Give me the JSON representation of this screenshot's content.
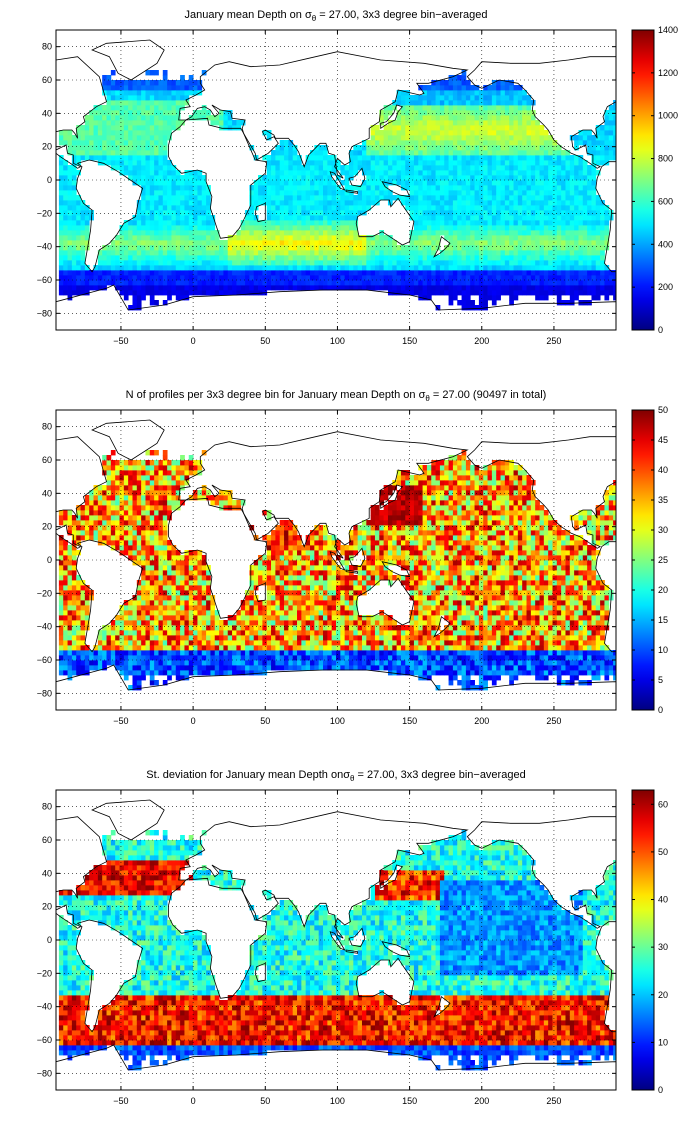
{
  "chart_data": [
    {
      "type": "heatmap",
      "title": "January mean Depth on σθ = 27.00, 3x3 degree bin−averaged",
      "title_parts": {
        "pre": "January mean Depth on σ",
        "sub": "θ",
        "post": " = 27.00, 3x3 degree bin−averaged"
      },
      "xlim": [
        -95,
        293
      ],
      "ylim": [
        -90,
        90
      ],
      "xticks": [
        -50,
        0,
        50,
        100,
        150,
        200,
        250
      ],
      "yticks": [
        -80,
        -60,
        -40,
        -20,
        0,
        20,
        40,
        60,
        80
      ],
      "xtick_labels": [
        "−50",
        "0",
        "50",
        "100",
        "150",
        "200",
        "250"
      ],
      "ytick_labels": [
        "−80",
        "−60",
        "−40",
        "−20",
        "0",
        "20",
        "40",
        "60",
        "80"
      ],
      "grid": true,
      "colorbar": {
        "min": 0,
        "max": 1400,
        "ticks": [
          0,
          200,
          400,
          600,
          800,
          1000,
          1200,
          1400
        ],
        "tick_labels": [
          "0",
          "200",
          "400",
          "600",
          "800",
          "1000",
          "1200",
          "1400"
        ],
        "colormap": "jet"
      }
    },
    {
      "type": "heatmap",
      "title": "N of profiles per 3x3 degree bin for January mean Depth on σθ = 27.00 (90497 in total)",
      "title_parts": {
        "pre": "N of profiles per 3x3 degree bin for January mean Depth on σ",
        "sub": "θ",
        "post": " = 27.00 (90497 in total)"
      },
      "xlim": [
        -95,
        293
      ],
      "ylim": [
        -90,
        90
      ],
      "xticks": [
        -50,
        0,
        50,
        100,
        150,
        200,
        250
      ],
      "yticks": [
        -80,
        -60,
        -40,
        -20,
        0,
        20,
        40,
        60,
        80
      ],
      "xtick_labels": [
        "−50",
        "0",
        "50",
        "100",
        "150",
        "200",
        "250"
      ],
      "ytick_labels": [
        "−80",
        "−60",
        "−40",
        "−20",
        "0",
        "20",
        "40",
        "60",
        "80"
      ],
      "grid": true,
      "total_profiles": 90497,
      "colorbar": {
        "min": 0,
        "max": 50,
        "ticks": [
          0,
          5,
          10,
          15,
          20,
          25,
          30,
          35,
          40,
          45,
          50
        ],
        "tick_labels": [
          "0",
          "5",
          "10",
          "15",
          "20",
          "25",
          "30",
          "35",
          "40",
          "45",
          "50"
        ],
        "colormap": "jet"
      }
    },
    {
      "type": "heatmap",
      "title": "St. deviation for January mean Depth onσθ = 27.00, 3x3 degree bin−averaged",
      "title_parts": {
        "pre": "St. deviation for January mean Depth onσ",
        "sub": "θ",
        "post": " = 27.00, 3x3 degree bin−averaged"
      },
      "xlim": [
        -95,
        293
      ],
      "ylim": [
        -90,
        90
      ],
      "xticks": [
        -50,
        0,
        50,
        100,
        150,
        200,
        250
      ],
      "yticks": [
        -80,
        -60,
        -40,
        -20,
        0,
        20,
        40,
        60,
        80
      ],
      "xtick_labels": [
        "−50",
        "0",
        "50",
        "100",
        "150",
        "200",
        "250"
      ],
      "ytick_labels": [
        "−80",
        "−60",
        "−40",
        "−20",
        "0",
        "20",
        "40",
        "60",
        "80"
      ],
      "grid": true,
      "colorbar": {
        "min": 0,
        "max": 63,
        "ticks": [
          0,
          10,
          20,
          30,
          40,
          50,
          60
        ],
        "tick_labels": [
          "0",
          "10",
          "20",
          "30",
          "40",
          "50",
          "60"
        ],
        "colormap": "jet"
      }
    }
  ],
  "colors": {
    "land": "#ffffff",
    "coast": "#000000",
    "grid": "#000000"
  }
}
